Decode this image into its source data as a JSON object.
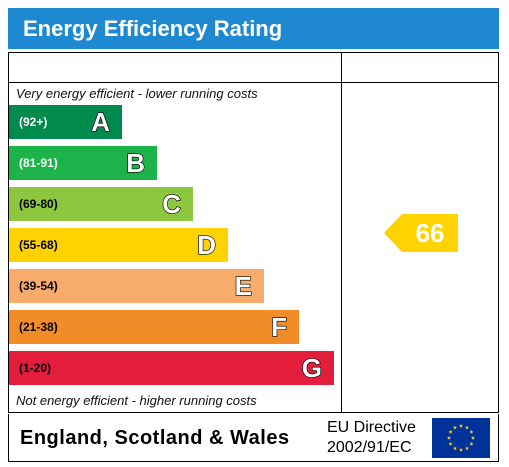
{
  "title": "Energy Efficiency Rating",
  "top_note": "Very energy efficient - lower running costs",
  "bottom_note": "Not energy efficient - higher running costs",
  "bands": [
    {
      "range": "(92+)",
      "letter": "A",
      "color": "#008a4e"
    },
    {
      "range": "(81-91)",
      "letter": "B",
      "color": "#1cb34a"
    },
    {
      "range": "(69-80)",
      "letter": "C",
      "color": "#8dc63f"
    },
    {
      "range": "(55-68)",
      "letter": "D",
      "color": "#ffd200"
    },
    {
      "range": "(39-54)",
      "letter": "E",
      "color": "#f7ac6b"
    },
    {
      "range": "(21-38)",
      "letter": "F",
      "color": "#f28c28"
    },
    {
      "range": "(1-20)",
      "letter": "G",
      "color": "#e31d3c"
    }
  ],
  "current_rating": {
    "value": "66",
    "color": "#ffd200"
  },
  "footer": {
    "country": "England, Scotland & Wales",
    "directive_line1": "EU Directive",
    "directive_line2": "2002/91/EC"
  },
  "colors": {
    "header": "#1e88d0",
    "flag_blue": "#003399",
    "flag_stars": "#ffcc00"
  }
}
